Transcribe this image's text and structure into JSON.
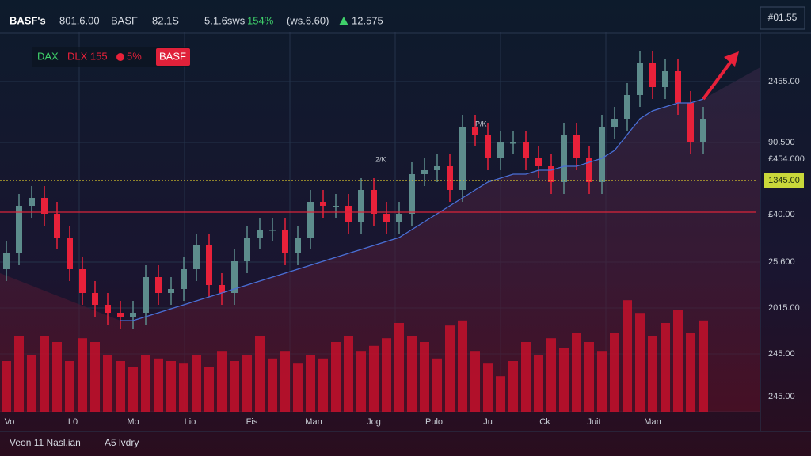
{
  "chart_data": {
    "type": "candlestick",
    "header": [
      "BASF's",
      "801.6.00",
      "BASF",
      "82.1S",
      "5.1.6sws",
      "154%",
      "(ws.6.60)",
      "12.575"
    ],
    "corner_label": "#01.55",
    "legend": [
      "DAX",
      "DLX 155",
      "5%",
      "BASF"
    ],
    "annotations": [
      "P/K",
      "2/K"
    ],
    "axis_labels": [
      "2455.00",
      "90.500",
      "£454.000",
      "£40.00",
      "25.600",
      "2015.00",
      "245.00",
      "245.00"
    ],
    "x_labels": [
      "Vo",
      "L0",
      "Mo",
      "Lio",
      "Fis",
      "Man",
      "Jog",
      "Pulo",
      "Ju",
      "Ck",
      "Juit",
      "Man"
    ],
    "footer": [
      "Veon 11 Nasl.ian",
      "A5 lvdry"
    ],
    "ylim": [
      0,
      100
    ],
    "vlim": [
      0,
      100
    ],
    "up_color": "#5d8c8c",
    "down_color": "#e8213a",
    "volume_color": "#c4102c",
    "ma_color": "#4a6fd6",
    "levels": [
      {
        "value": 58.4,
        "color": "#d9c62a",
        "label": "1345.00"
      },
      {
        "value": 50.4,
        "color": "#d9243a"
      }
    ],
    "open": [
      36,
      40,
      52,
      54,
      50,
      44,
      36,
      30,
      27,
      25,
      24,
      25,
      34,
      30,
      31,
      36,
      42,
      32,
      30,
      38,
      44,
      46,
      46,
      40,
      44,
      53,
      52,
      52,
      48,
      56,
      50,
      48,
      50,
      60,
      61,
      62,
      56,
      72,
      70,
      64,
      68,
      68,
      64,
      62,
      58,
      70,
      64,
      58,
      72,
      74,
      80,
      88,
      82,
      86,
      78,
      68
    ],
    "high": [
      43,
      55,
      57,
      57,
      53,
      47,
      39,
      33,
      30,
      28,
      28,
      37,
      37,
      34,
      39,
      45,
      45,
      35,
      41,
      47,
      49,
      49,
      49,
      47,
      56,
      56,
      55,
      55,
      59,
      59,
      53,
      53,
      63,
      64,
      65,
      65,
      75,
      75,
      73,
      71,
      71,
      71,
      67,
      65,
      73,
      73,
      67,
      75,
      77,
      83,
      91,
      91,
      89,
      89,
      81,
      77
    ],
    "low": [
      33,
      37,
      49,
      47,
      41,
      33,
      27,
      24,
      22,
      21,
      21,
      22,
      27,
      27,
      28,
      33,
      29,
      27,
      27,
      35,
      41,
      43,
      37,
      37,
      41,
      49,
      49,
      45,
      45,
      47,
      45,
      45,
      47,
      57,
      58,
      53,
      53,
      67,
      61,
      61,
      65,
      61,
      59,
      55,
      55,
      61,
      55,
      55,
      69,
      71,
      77,
      79,
      79,
      75,
      65,
      65
    ],
    "close": [
      40,
      52,
      54,
      50,
      44,
      36,
      30,
      27,
      25,
      24,
      25,
      34,
      30,
      31,
      36,
      42,
      32,
      30,
      38,
      44,
      46,
      46,
      40,
      44,
      53,
      52,
      52,
      48,
      56,
      50,
      48,
      50,
      60,
      61,
      62,
      56,
      72,
      70,
      64,
      68,
      68,
      64,
      62,
      58,
      70,
      64,
      58,
      72,
      74,
      80,
      88,
      82,
      86,
      78,
      68,
      74
    ],
    "volume": [
      40,
      60,
      45,
      60,
      55,
      40,
      58,
      55,
      45,
      40,
      35,
      45,
      42,
      40,
      38,
      45,
      35,
      48,
      40,
      45,
      60,
      42,
      48,
      38,
      45,
      42,
      55,
      60,
      48,
      52,
      58,
      70,
      60,
      55,
      42,
      68,
      72,
      48,
      38,
      28,
      40,
      55,
      45,
      58,
      50,
      62,
      55,
      48,
      62,
      88,
      78,
      60,
      70,
      80,
      62,
      72
    ],
    "ma": [
      null,
      null,
      null,
      null,
      null,
      null,
      null,
      null,
      null,
      23,
      23,
      24,
      25,
      26,
      27,
      28,
      29,
      30,
      31,
      32,
      33,
      34,
      35,
      36,
      37,
      38,
      39,
      40,
      41,
      42,
      43,
      44,
      46,
      48,
      50,
      52,
      54,
      56,
      58,
      59,
      60,
      60,
      61,
      61,
      62,
      62,
      63,
      64,
      66,
      70,
      74,
      76,
      77,
      78,
      78,
      79
    ]
  }
}
